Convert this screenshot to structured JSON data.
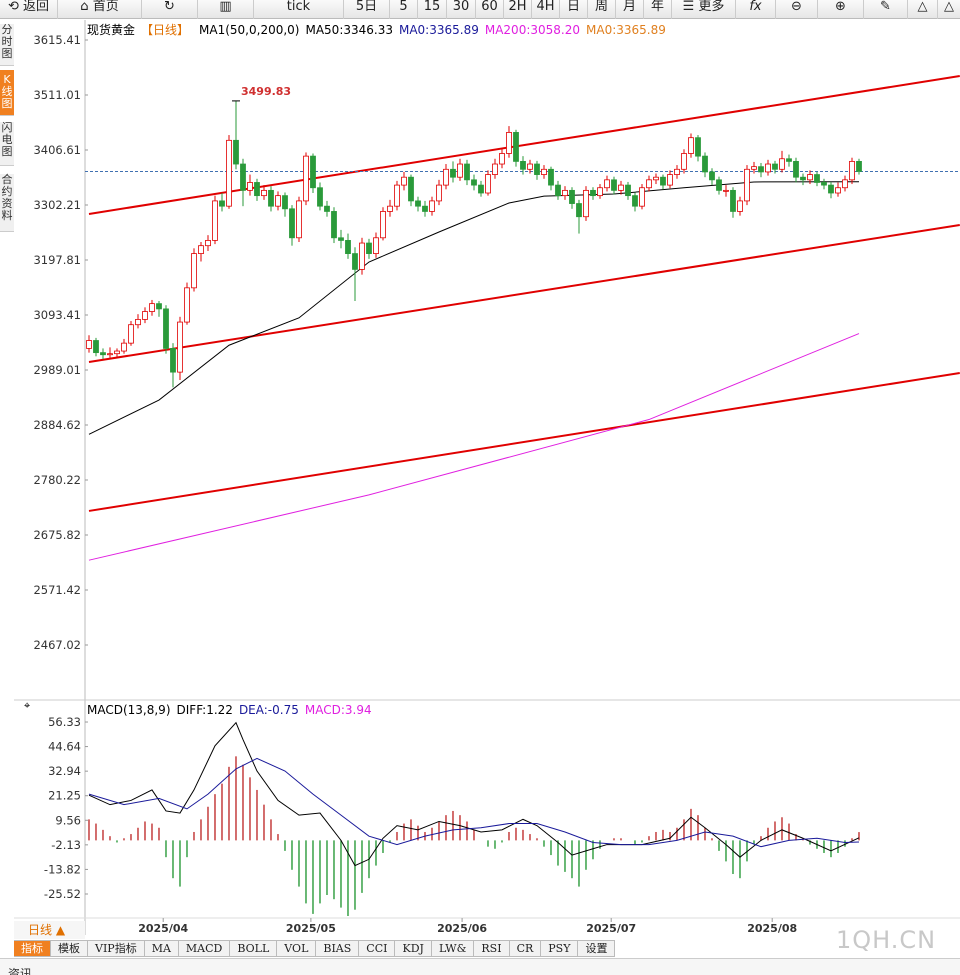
{
  "toolbar": [
    "返回",
    "首页",
    "tick",
    "5日",
    "5",
    "15",
    "30",
    "60",
    "2H",
    "4H",
    "日",
    "周",
    "月",
    "年",
    "更多"
  ],
  "sidebar": [
    "分时图",
    "K线图",
    "闪电图",
    "合约资料"
  ],
  "bottom": {
    "period": "日线",
    "tabs": [
      "指标",
      "模板",
      "VIP指标",
      "MA",
      "MACD",
      "BOLL",
      "VOL",
      "BIAS",
      "CCI",
      "KDJ",
      "LW&",
      "RSI",
      "CR",
      "PSY",
      "设置"
    ]
  },
  "watermark": "1QH.CN",
  "footer": "资讯",
  "chart_data": [
    {
      "type": "candlestick",
      "title": "现货黄金",
      "period": "【日线】",
      "indicator": "MA1(50,0,200,0)",
      "legend": [
        {
          "label": "MA50:3346.33",
          "color": "#000000"
        },
        {
          "label": "MA0:3365.89",
          "color": "#1a1a9a"
        },
        {
          "label": "MA200:3058.20",
          "color": "#e020e0"
        },
        {
          "label": "MA0:3365.89",
          "color": "#e08020"
        }
      ],
      "up_color": "#e00000",
      "down_color": "#2a9a3a",
      "xlim": [
        -0.57,
        124.43
      ],
      "ylim": [
        2381.6,
        3653.4
      ],
      "yticks": [
        3615.41,
        3511.01,
        3406.61,
        3302.21,
        3197.81,
        3093.41,
        2989.01,
        2884.62,
        2780.22,
        2675.82,
        2571.42,
        2467.02
      ],
      "candles": [
        [
          3030,
          3055,
          3022,
          3045
        ],
        [
          3045,
          3050,
          3015,
          3022
        ],
        [
          3022,
          3030,
          3010,
          3018
        ],
        [
          3018,
          3032,
          3012,
          3020
        ],
        [
          3020,
          3030,
          3012,
          3025
        ],
        [
          3025,
          3048,
          3020,
          3040
        ],
        [
          3040,
          3082,
          3035,
          3075
        ],
        [
          3075,
          3095,
          3068,
          3085
        ],
        [
          3085,
          3108,
          3078,
          3100
        ],
        [
          3100,
          3122,
          3092,
          3115
        ],
        [
          3115,
          3120,
          3090,
          3105
        ],
        [
          3105,
          3112,
          3020,
          3030
        ],
        [
          3030,
          3040,
          2956,
          2985
        ],
        [
          2985,
          3090,
          2970,
          3080
        ],
        [
          3080,
          3155,
          3075,
          3145
        ],
        [
          3145,
          3220,
          3138,
          3210
        ],
        [
          3210,
          3232,
          3195,
          3225
        ],
        [
          3225,
          3245,
          3215,
          3235
        ],
        [
          3235,
          3320,
          3228,
          3310
        ],
        [
          3310,
          3325,
          3290,
          3300
        ],
        [
          3300,
          3435,
          3295,
          3425
        ],
        [
          3425,
          3499.83,
          3370,
          3380
        ],
        [
          3380,
          3390,
          3300,
          3330
        ],
        [
          3330,
          3360,
          3320,
          3345
        ],
        [
          3345,
          3352,
          3310,
          3320
        ],
        [
          3320,
          3340,
          3312,
          3330
        ],
        [
          3330,
          3338,
          3290,
          3300
        ],
        [
          3300,
          3328,
          3292,
          3320
        ],
        [
          3320,
          3326,
          3280,
          3295
        ],
        [
          3295,
          3302,
          3225,
          3240
        ],
        [
          3240,
          3318,
          3232,
          3310
        ],
        [
          3310,
          3402,
          3302,
          3395
        ],
        [
          3395,
          3400,
          3325,
          3335
        ],
        [
          3335,
          3345,
          3292,
          3300
        ],
        [
          3300,
          3310,
          3280,
          3290
        ],
        [
          3290,
          3298,
          3230,
          3240
        ],
        [
          3240,
          3255,
          3220,
          3235
        ],
        [
          3235,
          3248,
          3200,
          3210
        ],
        [
          3210,
          3222,
          3120,
          3180
        ],
        [
          3180,
          3240,
          3170,
          3230
        ],
        [
          3230,
          3238,
          3200,
          3210
        ],
        [
          3210,
          3250,
          3202,
          3240
        ],
        [
          3240,
          3298,
          3235,
          3290
        ],
        [
          3290,
          3312,
          3280,
          3300
        ],
        [
          3300,
          3348,
          3292,
          3340
        ],
        [
          3340,
          3365,
          3330,
          3355
        ],
        [
          3355,
          3360,
          3300,
          3310
        ],
        [
          3310,
          3318,
          3290,
          3300
        ],
        [
          3300,
          3310,
          3280,
          3290
        ],
        [
          3290,
          3318,
          3282,
          3310
        ],
        [
          3310,
          3350,
          3302,
          3340
        ],
        [
          3340,
          3380,
          3332,
          3370
        ],
        [
          3370,
          3385,
          3345,
          3355
        ],
        [
          3355,
          3390,
          3348,
          3380
        ],
        [
          3380,
          3388,
          3340,
          3350
        ],
        [
          3350,
          3360,
          3330,
          3340
        ],
        [
          3340,
          3348,
          3318,
          3325
        ],
        [
          3325,
          3368,
          3320,
          3360
        ],
        [
          3360,
          3390,
          3352,
          3380
        ],
        [
          3380,
          3410,
          3372,
          3400
        ],
        [
          3400,
          3452,
          3392,
          3440
        ],
        [
          3440,
          3445,
          3375,
          3385
        ],
        [
          3385,
          3395,
          3360,
          3370
        ],
        [
          3370,
          3388,
          3362,
          3380
        ],
        [
          3380,
          3386,
          3350,
          3360
        ],
        [
          3360,
          3378,
          3352,
          3370
        ],
        [
          3370,
          3375,
          3330,
          3340
        ],
        [
          3340,
          3348,
          3312,
          3320
        ],
        [
          3320,
          3338,
          3312,
          3330
        ],
        [
          3330,
          3336,
          3295,
          3305
        ],
        [
          3305,
          3312,
          3248,
          3280
        ],
        [
          3280,
          3338,
          3272,
          3330
        ],
        [
          3330,
          3336,
          3312,
          3320
        ],
        [
          3320,
          3342,
          3314,
          3335
        ],
        [
          3335,
          3358,
          3328,
          3350
        ],
        [
          3350,
          3356,
          3322,
          3330
        ],
        [
          3330,
          3348,
          3322,
          3340
        ],
        [
          3340,
          3346,
          3312,
          3320
        ],
        [
          3320,
          3326,
          3290,
          3300
        ],
        [
          3300,
          3342,
          3294,
          3335
        ],
        [
          3335,
          3358,
          3328,
          3350
        ],
        [
          3350,
          3362,
          3342,
          3355
        ],
        [
          3355,
          3360,
          3332,
          3340
        ],
        [
          3340,
          3368,
          3334,
          3360
        ],
        [
          3360,
          3378,
          3352,
          3370
        ],
        [
          3370,
          3408,
          3362,
          3400
        ],
        [
          3400,
          3438,
          3392,
          3430
        ],
        [
          3430,
          3435,
          3385,
          3395
        ],
        [
          3395,
          3402,
          3355,
          3365
        ],
        [
          3365,
          3372,
          3340,
          3350
        ],
        [
          3350,
          3356,
          3322,
          3330
        ],
        [
          3330,
          3340,
          3318,
          3330
        ],
        [
          3330,
          3336,
          3278,
          3290
        ],
        [
          3290,
          3318,
          3282,
          3310
        ],
        [
          3310,
          3378,
          3302,
          3370
        ],
        [
          3370,
          3384,
          3362,
          3375
        ],
        [
          3375,
          3382,
          3355,
          3365
        ],
        [
          3365,
          3388,
          3358,
          3380
        ],
        [
          3380,
          3386,
          3362,
          3370
        ],
        [
          3370,
          3405,
          3364,
          3390
        ],
        [
          3390,
          3398,
          3375,
          3385
        ],
        [
          3385,
          3392,
          3345,
          3355
        ],
        [
          3355,
          3362,
          3340,
          3350
        ],
        [
          3350,
          3368,
          3342,
          3360
        ],
        [
          3360,
          3365,
          3338,
          3345
        ],
        [
          3345,
          3352,
          3332,
          3340
        ],
        [
          3340,
          3346,
          3315,
          3325
        ],
        [
          3325,
          3345,
          3318,
          3335
        ],
        [
          3335,
          3358,
          3328,
          3350
        ],
        [
          3350,
          3392,
          3342,
          3385
        ],
        [
          3385,
          3390,
          3360,
          3366
        ]
      ],
      "series": [
        {
          "name": "MA50",
          "color": "#000000",
          "x": [
            0,
            10,
            20,
            30,
            40,
            50,
            60,
            65,
            75,
            85,
            95,
            110
          ],
          "values": [
            2867,
            2932,
            3036,
            3088,
            3194,
            3251,
            3306,
            3319,
            3323,
            3335,
            3346,
            3346.33
          ]
        },
        {
          "name": "MA200",
          "color": "#e020e0",
          "x": [
            0,
            40,
            80,
            110
          ],
          "values": [
            2628,
            2752,
            2895,
            3058.2
          ]
        }
      ],
      "trendlines": [
        {
          "color": "#e00000",
          "x": [
            0,
            124.4
          ],
          "values": [
            3285.2,
            3547.1
          ]
        },
        {
          "color": "#e00000",
          "x": [
            0,
            124.4
          ],
          "values": [
            3004.3,
            3264.3
          ]
        },
        {
          "color": "#e00000",
          "x": [
            0,
            124.4
          ],
          "values": [
            2721.5,
            2983.4
          ]
        }
      ],
      "price_line": 3365.89,
      "annotations": [
        {
          "index": 21,
          "value": 3499.83,
          "label": "3499.83"
        }
      ]
    },
    {
      "type": "macd",
      "title": "MACD(13,8,9)",
      "legend": [
        {
          "label": "DIFF:1.22",
          "color": "#000000"
        },
        {
          "label": "DEA:-0.75",
          "color": "#1a1a9a"
        },
        {
          "label": "MACD:3.94",
          "color": "#e020e0"
        }
      ],
      "up_color": "#c03030",
      "down_color": "#2a9a3a",
      "xlim": [
        -0.57,
        124.43
      ],
      "ylim": [
        -37.9,
        59.67
      ],
      "yticks": [
        56.33,
        44.64,
        32.94,
        21.25,
        9.56,
        -2.13,
        -13.82,
        -25.52
      ],
      "histogram": [
        10,
        8,
        5,
        2,
        -1,
        1,
        3,
        6,
        9,
        8,
        6,
        -8,
        -18,
        -22,
        -8,
        4,
        10,
        16,
        22,
        27,
        35,
        40,
        36,
        30,
        24,
        17,
        10,
        3,
        -5,
        -14,
        -22,
        -30,
        -35,
        -30,
        -26,
        -28,
        -32,
        -36,
        -33,
        -25,
        -18,
        -12,
        -6,
        -1,
        4,
        8,
        10,
        7,
        4,
        6,
        9,
        12,
        14,
        12,
        9,
        5,
        0,
        -3,
        -4,
        -1,
        4,
        6,
        5,
        3,
        1,
        -3,
        -7,
        -12,
        -15,
        -18,
        -22,
        -14,
        -9,
        -4,
        0,
        1,
        1,
        0,
        -2,
        -1,
        2,
        4,
        5,
        4,
        6,
        10,
        15,
        12,
        6,
        1,
        -5,
        -10,
        -16,
        -18,
        -10,
        -2,
        2,
        6,
        9,
        11,
        8,
        3,
        1,
        -2,
        -4,
        -6,
        -8,
        -6,
        -3,
        1,
        3.94
      ],
      "series": [
        {
          "name": "DIFF",
          "color": "#000000",
          "x": [
            0,
            3,
            6,
            9,
            11,
            13,
            15,
            18,
            21,
            22,
            24,
            27,
            30,
            33,
            36,
            38,
            40,
            42,
            44,
            47,
            50,
            53,
            56,
            59,
            62,
            64,
            67,
            69,
            72,
            74,
            79,
            83,
            86,
            88,
            91,
            93,
            96,
            99,
            102,
            106,
            110
          ],
          "values": [
            21.5,
            17,
            19,
            24,
            14,
            13,
            24,
            45,
            56,
            48,
            33,
            19,
            12,
            13,
            0,
            -12,
            -9,
            1,
            7,
            5,
            9,
            7,
            4,
            5,
            10,
            7,
            -1,
            -7,
            -4,
            -2,
            -2,
            1,
            11,
            6,
            -2,
            -8,
            0,
            5,
            1,
            -5,
            1.22
          ]
        },
        {
          "name": "DEA",
          "color": "#1a1a9a",
          "x": [
            0,
            5,
            10,
            14,
            17,
            21,
            24,
            28,
            32,
            36,
            40,
            44,
            48,
            52,
            56,
            60,
            64,
            68,
            72,
            76,
            80,
            84,
            88,
            92,
            96,
            100,
            104,
            108,
            110
          ],
          "values": [
            22,
            17,
            20,
            15,
            22,
            34,
            39,
            33,
            22,
            12,
            2,
            -2,
            2,
            5,
            6,
            8,
            8,
            4,
            -1,
            -2,
            -2,
            0,
            4,
            2,
            -3,
            0,
            1,
            -1,
            -0.75
          ]
        }
      ],
      "date_ticks": [
        {
          "value": 10.6,
          "label": "2025/04"
        },
        {
          "value": 31.7,
          "label": "2025/05"
        },
        {
          "value": 53.3,
          "label": "2025/06"
        },
        {
          "value": 74.6,
          "label": "2025/07"
        },
        {
          "value": 97.6,
          "label": "2025/08"
        }
      ]
    }
  ]
}
